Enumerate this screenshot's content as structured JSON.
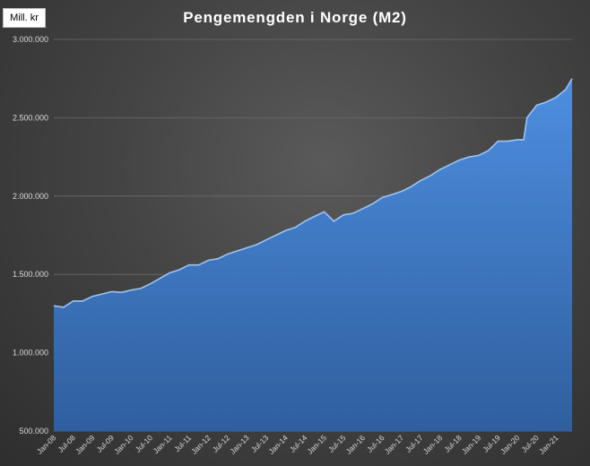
{
  "chart_data": {
    "type": "area",
    "title": "Pengemengden i Norge (M2)",
    "unit_label": "Mill. kr",
    "ylim": [
      500000,
      3000000
    ],
    "y_ticks": [
      500000,
      1000000,
      1500000,
      2000000,
      2500000,
      3000000
    ],
    "y_tick_labels": [
      "500.000",
      "1.000.000",
      "1.500.000",
      "2.000.000",
      "2.500.000",
      "3.000.000"
    ],
    "x_tick_labels": [
      "Jan-08",
      "Jul-08",
      "Jan-09",
      "Jul-09",
      "Jan-10",
      "Jul-10",
      "Jan-11",
      "Jul-11",
      "Jan-12",
      "Jul-12",
      "Jan-13",
      "Jul-13",
      "Jan-14",
      "Jul-14",
      "Jan-15",
      "Jul-15",
      "Jan-16",
      "Jul-16",
      "Jan-17",
      "Jul-17",
      "Jan-18",
      "Jul-18",
      "Jan-19",
      "Jul-19",
      "Jan-20",
      "Jul-20",
      "Jan-21"
    ],
    "grid": true,
    "legend": "none",
    "fill_color": "#4a86d6",
    "series": [
      {
        "x": [
          "2008-01",
          "2008-04",
          "2008-07",
          "2008-10",
          "2009-01",
          "2009-04",
          "2009-07",
          "2009-10",
          "2010-01",
          "2010-04",
          "2010-07",
          "2010-10",
          "2011-01",
          "2011-04",
          "2011-07",
          "2011-10",
          "2012-01",
          "2012-04",
          "2012-07",
          "2012-10",
          "2013-01",
          "2013-04",
          "2013-07",
          "2013-10",
          "2014-01",
          "2014-04",
          "2014-07",
          "2014-10",
          "2015-01",
          "2015-04",
          "2015-07",
          "2015-10",
          "2016-01",
          "2016-04",
          "2016-07",
          "2016-10",
          "2017-01",
          "2017-04",
          "2017-07",
          "2017-10",
          "2018-01",
          "2018-04",
          "2018-07",
          "2018-10",
          "2019-01",
          "2019-04",
          "2019-07",
          "2019-10",
          "2020-01",
          "2020-03",
          "2020-04",
          "2020-07",
          "2020-10",
          "2021-01",
          "2021-04",
          "2021-06"
        ],
        "values": [
          1300000,
          1290000,
          1330000,
          1330000,
          1360000,
          1375000,
          1390000,
          1385000,
          1400000,
          1410000,
          1440000,
          1475000,
          1510000,
          1530000,
          1560000,
          1560000,
          1590000,
          1600000,
          1630000,
          1650000,
          1670000,
          1690000,
          1720000,
          1750000,
          1780000,
          1800000,
          1840000,
          1870000,
          1900000,
          1840000,
          1880000,
          1890000,
          1920000,
          1950000,
          1990000,
          2010000,
          2030000,
          2060000,
          2100000,
          2130000,
          2170000,
          2200000,
          2230000,
          2250000,
          2260000,
          2290000,
          2350000,
          2350000,
          2360000,
          2360000,
          2500000,
          2580000,
          2600000,
          2630000,
          2680000,
          2750000
        ]
      }
    ]
  }
}
